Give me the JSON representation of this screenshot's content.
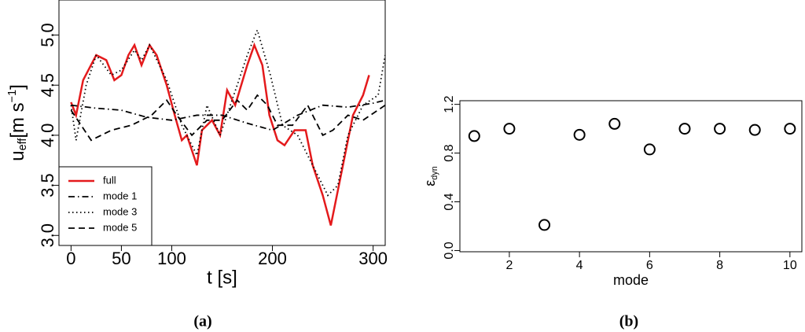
{
  "chart_data": [
    {
      "type": "line",
      "caption": "(a)",
      "xlabel": "t [s]",
      "ylabel": {
        "base": "u",
        "sub": "eff",
        "unit": "[m s",
        "sup": "−1",
        "close": "]"
      },
      "xlim": [
        -12,
        312
      ],
      "ylim": [
        2.9,
        5.35
      ],
      "xticks": [
        0,
        50,
        100,
        200,
        300
      ],
      "yticks": [
        {
          "value": 3,
          "label": "3.0"
        },
        3.5,
        {
          "value": 4,
          "label": "4.0"
        },
        4.5,
        {
          "value": 5,
          "label": "5.0"
        }
      ],
      "legend": "bottom-left",
      "series": [
        {
          "name": "full",
          "color": "#e41a1c",
          "linestyle": "solid",
          "x": [
            0,
            5,
            12,
            25,
            35,
            43,
            50,
            57,
            63,
            70,
            78,
            85,
            95,
            103,
            110,
            115,
            125,
            130,
            140,
            148,
            155,
            163,
            175,
            182,
            190,
            197,
            205,
            212,
            222,
            233,
            240,
            250,
            258,
            268,
            280,
            290,
            296
          ],
          "values": [
            4.33,
            4.2,
            4.55,
            4.8,
            4.75,
            4.55,
            4.6,
            4.8,
            4.9,
            4.7,
            4.9,
            4.8,
            4.5,
            4.2,
            3.95,
            4.0,
            3.7,
            4.05,
            4.15,
            4.0,
            4.45,
            4.3,
            4.7,
            4.9,
            4.7,
            4.2,
            3.95,
            3.9,
            4.05,
            4.05,
            3.7,
            3.4,
            3.1,
            3.6,
            4.2,
            4.4,
            4.6
          ]
        },
        {
          "name": "mode 1",
          "color": "#000000",
          "linestyle": "dotdash",
          "x": [
            0,
            25,
            50,
            75,
            100,
            125,
            150,
            175,
            200,
            225,
            250,
            275,
            300,
            312
          ],
          "values": [
            4.3,
            4.27,
            4.25,
            4.18,
            4.15,
            4.2,
            4.2,
            4.12,
            4.05,
            4.2,
            4.3,
            4.28,
            4.32,
            4.35
          ]
        },
        {
          "name": "mode 3",
          "color": "#000000",
          "linestyle": "dotted",
          "x": [
            0,
            5,
            15,
            25,
            40,
            50,
            63,
            70,
            78,
            95,
            110,
            125,
            135,
            148,
            165,
            175,
            185,
            198,
            210,
            225,
            240,
            255,
            265,
            275,
            290,
            305,
            312
          ],
          "values": [
            4.3,
            3.95,
            4.5,
            4.8,
            4.6,
            4.65,
            4.85,
            4.75,
            4.9,
            4.55,
            4.1,
            3.8,
            4.3,
            4.0,
            4.5,
            4.8,
            5.05,
            4.6,
            4.1,
            4.0,
            3.7,
            3.4,
            3.5,
            4.0,
            4.3,
            4.4,
            4.8
          ]
        },
        {
          "name": "mode 5",
          "color": "#000000",
          "linestyle": "dashed",
          "x": [
            0,
            10,
            20,
            40,
            60,
            80,
            95,
            105,
            120,
            135,
            150,
            165,
            175,
            185,
            195,
            205,
            220,
            235,
            250,
            260,
            275,
            290,
            312
          ],
          "values": [
            4.25,
            4.1,
            3.95,
            4.05,
            4.1,
            4.2,
            4.35,
            4.2,
            4.0,
            4.15,
            4.15,
            4.35,
            4.25,
            4.4,
            4.3,
            4.1,
            4.1,
            4.3,
            4.0,
            4.05,
            4.2,
            4.15,
            4.3
          ]
        }
      ]
    },
    {
      "type": "scatter",
      "caption": "(b)",
      "xlabel": "mode",
      "ylabel": {
        "base": "ε",
        "sub": "dyn"
      },
      "xlim": [
        0.59,
        10.34
      ],
      "ylim": [
        -0.01,
        1.23
      ],
      "xticks": [
        2,
        4,
        6,
        8,
        10
      ],
      "yticks": [
        {
          "value": 0,
          "label": "0.0"
        },
        0.4,
        0.8,
        {
          "value": 1.2,
          "label": "1.2"
        }
      ],
      "color": "#000000",
      "x": [
        1,
        2,
        3,
        4,
        5,
        6,
        7,
        8,
        9,
        10
      ],
      "values": [
        0.94,
        1.0,
        0.21,
        0.95,
        1.04,
        0.83,
        1.0,
        1.0,
        0.99,
        1.0
      ]
    }
  ]
}
